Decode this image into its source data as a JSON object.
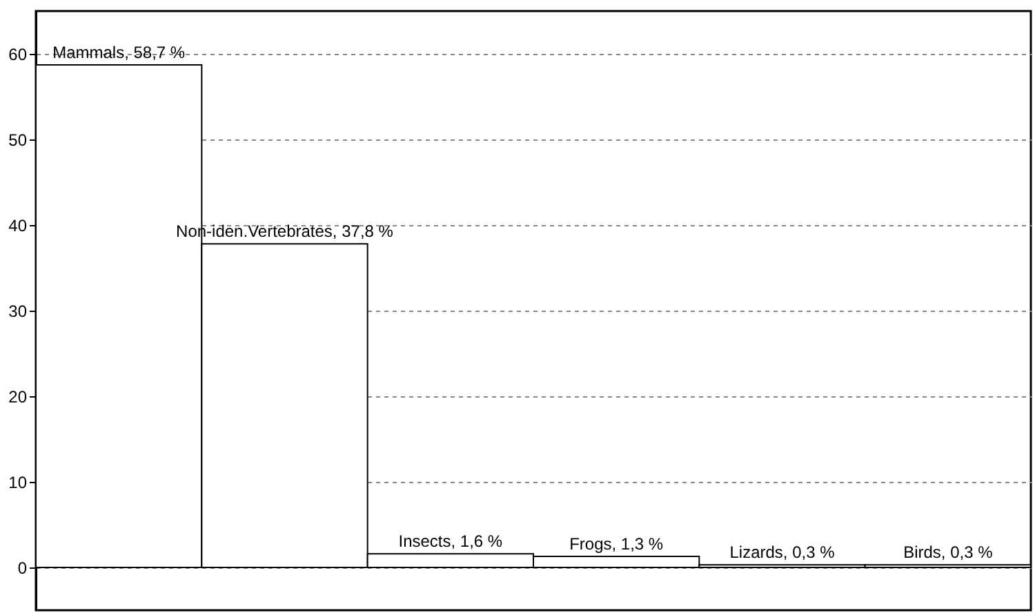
{
  "chart_data": {
    "type": "bar",
    "categories": [
      null,
      null,
      null,
      null,
      null,
      null
    ],
    "values": [
      58.7,
      37.8,
      1.6,
      1.3,
      0.3,
      0.3
    ],
    "value_labels": [
      "Mammals, 58,7 %",
      "Non-iden.Vertebrates, 37,8 %",
      "Insects, 1,6 %",
      "Frogs, 1,3 %",
      "Lizards, 0,3 %",
      "Birds, 0,3 %"
    ],
    "color": "#ffffff",
    "ylim": [
      -5,
      65
    ],
    "yticks": [
      0,
      10,
      20,
      30,
      40,
      50,
      60
    ],
    "grid": "y",
    "tick_labels": "y"
  }
}
